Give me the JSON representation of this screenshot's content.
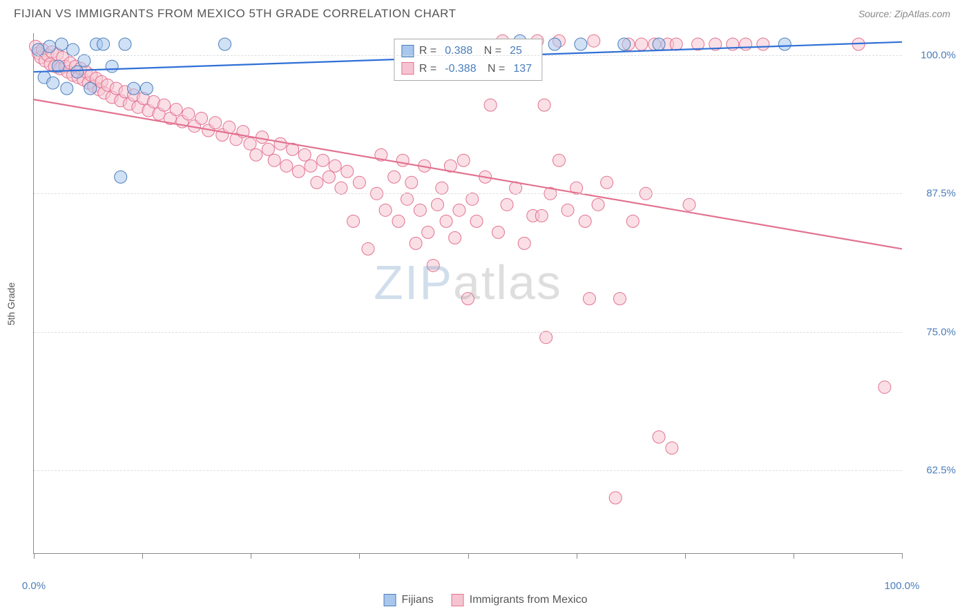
{
  "header": {
    "title": "FIJIAN VS IMMIGRANTS FROM MEXICO 5TH GRADE CORRELATION CHART",
    "source": "Source: ZipAtlas.com"
  },
  "chart": {
    "type": "scatter",
    "ylabel": "5th Grade",
    "xlim": [
      0,
      100
    ],
    "ylim": [
      55,
      102
    ],
    "xtick_positions": [
      0,
      12.5,
      25,
      37.5,
      50,
      62.5,
      75,
      87.5,
      100
    ],
    "xtick_labels": {
      "0": "0.0%",
      "100": "100.0%"
    },
    "ytick_positions": [
      62.5,
      75,
      87.5,
      100
    ],
    "ytick_labels": [
      "62.5%",
      "75.0%",
      "87.5%",
      "100.0%"
    ],
    "grid_color": "#dddddd",
    "axis_color": "#888888",
    "tick_label_color": "#4a7ebb",
    "background_color": "#ffffff",
    "marker_radius": 9,
    "marker_opacity": 0.55,
    "label_fontsize": 14,
    "tick_fontsize": 15
  },
  "series": [
    {
      "key": "fijians",
      "label": "Fijians",
      "fill": "#a9c6ec",
      "stroke": "#4a7ebb",
      "line_color": "#2e6fd6",
      "line_width": 2.2,
      "R": "0.388",
      "N": "25",
      "trend": {
        "x1": 0,
        "y1": 98.5,
        "x2": 100,
        "y2": 101.2
      },
      "points": [
        [
          0.5,
          100.5
        ],
        [
          1.2,
          98.0
        ],
        [
          1.8,
          100.8
        ],
        [
          2.2,
          97.5
        ],
        [
          2.8,
          99.0
        ],
        [
          3.2,
          101.0
        ],
        [
          3.8,
          97.0
        ],
        [
          4.5,
          100.5
        ],
        [
          5.0,
          98.5
        ],
        [
          5.8,
          99.5
        ],
        [
          6.5,
          97.0
        ],
        [
          7.2,
          101.0
        ],
        [
          8.0,
          101.0
        ],
        [
          9.0,
          99.0
        ],
        [
          10.5,
          101.0
        ],
        [
          11.5,
          97.0
        ],
        [
          13.0,
          97.0
        ],
        [
          10.0,
          89.0
        ],
        [
          22.0,
          101.0
        ],
        [
          60.0,
          101.0
        ],
        [
          63.0,
          101.0
        ],
        [
          68.0,
          101.0
        ],
        [
          72.0,
          101.0
        ],
        [
          86.5,
          101.0
        ],
        [
          56.0,
          101.3
        ]
      ]
    },
    {
      "key": "mexico",
      "label": "Immigrants from Mexico",
      "fill": "#f6c4d1",
      "stroke": "#e2728f",
      "line_color": "#e2728f",
      "line_width": 2.2,
      "R": "-0.388",
      "N": "137",
      "trend": {
        "x1": 0,
        "y1": 96.0,
        "x2": 100,
        "y2": 82.5
      },
      "points": [
        [
          0.2,
          100.8
        ],
        [
          0.5,
          100.2
        ],
        [
          0.8,
          99.8
        ],
        [
          1.0,
          100.5
        ],
        [
          1.3,
          99.5
        ],
        [
          1.6,
          100.0
        ],
        [
          1.9,
          99.2
        ],
        [
          2.1,
          100.3
        ],
        [
          2.4,
          99.0
        ],
        [
          2.7,
          100.1
        ],
        [
          3.0,
          98.8
        ],
        [
          3.3,
          99.8
        ],
        [
          3.6,
          99.0
        ],
        [
          3.9,
          98.5
        ],
        [
          4.2,
          99.3
        ],
        [
          4.5,
          98.2
        ],
        [
          4.8,
          99.0
        ],
        [
          5.1,
          98.0
        ],
        [
          5.4,
          98.8
        ],
        [
          5.7,
          97.8
        ],
        [
          6.0,
          98.5
        ],
        [
          6.3,
          97.5
        ],
        [
          6.6,
          98.2
        ],
        [
          6.9,
          97.2
        ],
        [
          7.2,
          97.9
        ],
        [
          7.5,
          96.9
        ],
        [
          7.8,
          97.6
        ],
        [
          8.1,
          96.6
        ],
        [
          8.5,
          97.3
        ],
        [
          9.0,
          96.2
        ],
        [
          9.5,
          97.0
        ],
        [
          10.0,
          95.9
        ],
        [
          10.5,
          96.7
        ],
        [
          11.0,
          95.6
        ],
        [
          11.5,
          96.4
        ],
        [
          12.0,
          95.3
        ],
        [
          12.6,
          96.1
        ],
        [
          13.2,
          95.0
        ],
        [
          13.8,
          95.8
        ],
        [
          14.4,
          94.7
        ],
        [
          15.0,
          95.5
        ],
        [
          15.7,
          94.3
        ],
        [
          16.4,
          95.1
        ],
        [
          17.1,
          94.0
        ],
        [
          17.8,
          94.7
        ],
        [
          18.5,
          93.6
        ],
        [
          19.3,
          94.3
        ],
        [
          20.1,
          93.2
        ],
        [
          20.9,
          93.9
        ],
        [
          21.7,
          92.8
        ],
        [
          22.5,
          93.5
        ],
        [
          23.3,
          92.4
        ],
        [
          24.1,
          93.1
        ],
        [
          24.9,
          92.0
        ],
        [
          25.6,
          91.0
        ],
        [
          26.3,
          92.6
        ],
        [
          27.0,
          91.5
        ],
        [
          27.7,
          90.5
        ],
        [
          28.4,
          92.0
        ],
        [
          29.1,
          90.0
        ],
        [
          29.8,
          91.5
        ],
        [
          30.5,
          89.5
        ],
        [
          31.2,
          91.0
        ],
        [
          31.9,
          90.0
        ],
        [
          32.6,
          88.5
        ],
        [
          33.3,
          90.5
        ],
        [
          34.0,
          89.0
        ],
        [
          34.7,
          90.0
        ],
        [
          35.4,
          88.0
        ],
        [
          36.1,
          89.5
        ],
        [
          36.8,
          85.0
        ],
        [
          37.5,
          88.5
        ],
        [
          38.5,
          82.5
        ],
        [
          39.5,
          87.5
        ],
        [
          40.0,
          91.0
        ],
        [
          40.5,
          86.0
        ],
        [
          41.5,
          89.0
        ],
        [
          42.0,
          85.0
        ],
        [
          42.5,
          90.5
        ],
        [
          43.0,
          87.0
        ],
        [
          43.5,
          88.5
        ],
        [
          44.0,
          83.0
        ],
        [
          44.5,
          86.0
        ],
        [
          45.0,
          90.0
        ],
        [
          45.4,
          84.0
        ],
        [
          46.0,
          81.0
        ],
        [
          46.5,
          86.5
        ],
        [
          47.0,
          88.0
        ],
        [
          47.5,
          85.0
        ],
        [
          48.0,
          90.0
        ],
        [
          48.5,
          83.5
        ],
        [
          49.0,
          86.0
        ],
        [
          49.5,
          90.5
        ],
        [
          50.0,
          78.0
        ],
        [
          50.5,
          87.0
        ],
        [
          51.0,
          85.0
        ],
        [
          52.0,
          89.0
        ],
        [
          52.6,
          95.5
        ],
        [
          53.5,
          84.0
        ],
        [
          54.5,
          86.5
        ],
        [
          55.5,
          88.0
        ],
        [
          56.5,
          83.0
        ],
        [
          57.5,
          85.5
        ],
        [
          58.8,
          95.5
        ],
        [
          58.5,
          85.5
        ],
        [
          59.0,
          74.5
        ],
        [
          59.5,
          87.5
        ],
        [
          60.5,
          90.5
        ],
        [
          61.5,
          86.0
        ],
        [
          62.5,
          88.0
        ],
        [
          63.5,
          85.0
        ],
        [
          60.5,
          101.3
        ],
        [
          64.5,
          101.3
        ],
        [
          64.0,
          78.0
        ],
        [
          65.0,
          86.5
        ],
        [
          66.0,
          88.5
        ],
        [
          67.0,
          60.0
        ],
        [
          67.5,
          78.0
        ],
        [
          68.5,
          101.0
        ],
        [
          69.0,
          85.0
        ],
        [
          70.0,
          101.0
        ],
        [
          70.5,
          87.5
        ],
        [
          71.5,
          101.0
        ],
        [
          72.0,
          65.5
        ],
        [
          73.0,
          101.0
        ],
        [
          73.5,
          64.5
        ],
        [
          74.0,
          101.0
        ],
        [
          75.5,
          86.5
        ],
        [
          76.5,
          101.0
        ],
        [
          78.5,
          101.0
        ],
        [
          80.5,
          101.0
        ],
        [
          82.0,
          101.0
        ],
        [
          84.0,
          101.0
        ],
        [
          95.0,
          101.0
        ],
        [
          98.0,
          70.0
        ],
        [
          54.0,
          101.3
        ],
        [
          58.0,
          101.3
        ]
      ]
    }
  ],
  "legendBox": {
    "r_label": "R =",
    "n_label": "N ="
  },
  "bottomLegend": {
    "items": [
      "Fijians",
      "Immigrants from Mexico"
    ]
  },
  "watermark": {
    "part1": "ZIP",
    "part2": "atlas"
  }
}
